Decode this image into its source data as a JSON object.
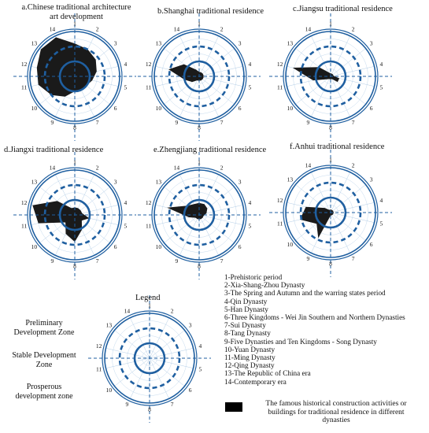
{
  "chart_data": [
    {
      "type": "radar",
      "title": "a.Chinese traditional architecture art development",
      "categories": [
        "1",
        "2",
        "3",
        "4",
        "5",
        "6",
        "7",
        "8",
        "9",
        "10",
        "11",
        "12",
        "13",
        "14"
      ],
      "values": [
        2.2,
        2,
        1.8,
        1.5,
        1.2,
        1,
        1,
        1,
        1.5,
        2,
        2.5,
        2.6,
        2.9,
        2.9
      ],
      "rlim": [
        0,
        3
      ],
      "rticks": [
        1,
        2,
        3
      ],
      "color": "#1a1a1a",
      "ring_color": "#1f5fa0"
    },
    {
      "type": "radar",
      "title": "b.Shanghai traditional residence",
      "categories": [
        "1",
        "2",
        "3",
        "4",
        "5",
        "6",
        "7",
        "8",
        "9",
        "10",
        "11",
        "12",
        "13",
        "14"
      ],
      "values": [
        0.3,
        0.3,
        0.3,
        0.3,
        0.3,
        0.3,
        0.3,
        0.3,
        0.3,
        0.6,
        1,
        2.1,
        1.3,
        0.5
      ],
      "rlim": [
        0,
        3
      ],
      "rticks": [
        1,
        2,
        3
      ],
      "color": "#1a1a1a",
      "ring_color": "#1f5fa0"
    },
    {
      "type": "radar",
      "title": "c.Jiangsu traditional residence",
      "categories": [
        "1",
        "2",
        "3",
        "4",
        "5",
        "6",
        "7",
        "8",
        "9",
        "10",
        "11",
        "12",
        "13",
        "14"
      ],
      "values": [
        0.2,
        0.2,
        0.2,
        0.2,
        0.6,
        0.6,
        0.2,
        0.2,
        0.2,
        0.3,
        1.2,
        2.6,
        1,
        0.3
      ],
      "rlim": [
        0,
        3
      ],
      "rticks": [
        1,
        2,
        3
      ],
      "color": "#1a1a1a",
      "ring_color": "#1f5fa0"
    },
    {
      "type": "radar",
      "title": "d.Jiangxi traditional residence",
      "categories": [
        "1",
        "2",
        "3",
        "4",
        "5",
        "6",
        "7",
        "8",
        "9",
        "10",
        "11",
        "12",
        "13",
        "14"
      ],
      "values": [
        0.5,
        0.5,
        0.5,
        0.5,
        1,
        0.6,
        1.1,
        1.8,
        1.4,
        0.8,
        2.5,
        2.9,
        1.5,
        0.5
      ],
      "rlim": [
        0,
        3
      ],
      "rticks": [
        1,
        2,
        3
      ],
      "color": "#1a1a1a",
      "ring_color": "#1f5fa0"
    },
    {
      "type": "radar",
      "title": "e.Zhengjiang traditional residence",
      "categories": [
        "1",
        "2",
        "3",
        "4",
        "5",
        "6",
        "7",
        "8",
        "9",
        "10",
        "11",
        "12",
        "13",
        "14"
      ],
      "values": [
        0.8,
        0.8,
        0.7,
        0.5,
        0.3,
        0.3,
        0.3,
        0.3,
        0.3,
        0.3,
        0.7,
        2.2,
        1,
        0.8
      ],
      "rlim": [
        0,
        3
      ],
      "rticks": [
        1,
        2,
        3
      ],
      "color": "#1a1a1a",
      "ring_color": "#1f5fa0"
    },
    {
      "type": "radar",
      "title": "f.Anhui traditional residence",
      "categories": [
        "1",
        "2",
        "3",
        "4",
        "5",
        "6",
        "7",
        "8",
        "9",
        "10",
        "11",
        "12",
        "13",
        "14"
      ],
      "values": [
        0.2,
        0.2,
        0.2,
        0.2,
        0.2,
        0.2,
        0.2,
        0.2,
        1.9,
        1.2,
        2.1,
        1.7,
        0.5,
        0.2
      ],
      "rlim": [
        0,
        3
      ],
      "rticks": [
        1,
        2,
        3
      ],
      "color": "#1a1a1a",
      "ring_color": "#1f5fa0"
    }
  ],
  "legend": {
    "title": "Legend",
    "categories": [
      "1",
      "2",
      "3",
      "4",
      "5",
      "6",
      "7",
      "8",
      "9",
      "10",
      "11",
      "12",
      "13",
      "14"
    ],
    "rlim": [
      0,
      3
    ],
    "rticks": [
      1,
      2,
      3
    ],
    "ring_color": "#1f5fa0",
    "zones": [
      "Preliminary Development Zone",
      "Stable Development Zone",
      "Prosperous development zone"
    ],
    "periods": [
      "1-Prehistoric period",
      "2-Xia-Shang-Zhou Dynasty",
      "3-The Spring and Autumn and the warring  states period",
      "4-Qin Dynasty",
      "5-Han Dynasty",
      "6-Three Kingdoms - Wei Jin Southern  and  Northern Dynasties",
      "7-Sui Dynasty",
      "8-Tang Dynasty",
      "9-Five Dynasties and Ten Kingdoms - Song Dynasty",
      "10-Yuan Dynasty",
      "11-Ming Dynasty",
      "12-Qing Dynasty",
      "13-The Republic of China era",
      "14-Contemporary era"
    ],
    "fill_note": "The famous historical construction activities or buildings for traditional residence in different dynasties",
    "fill_color": "#000000"
  }
}
